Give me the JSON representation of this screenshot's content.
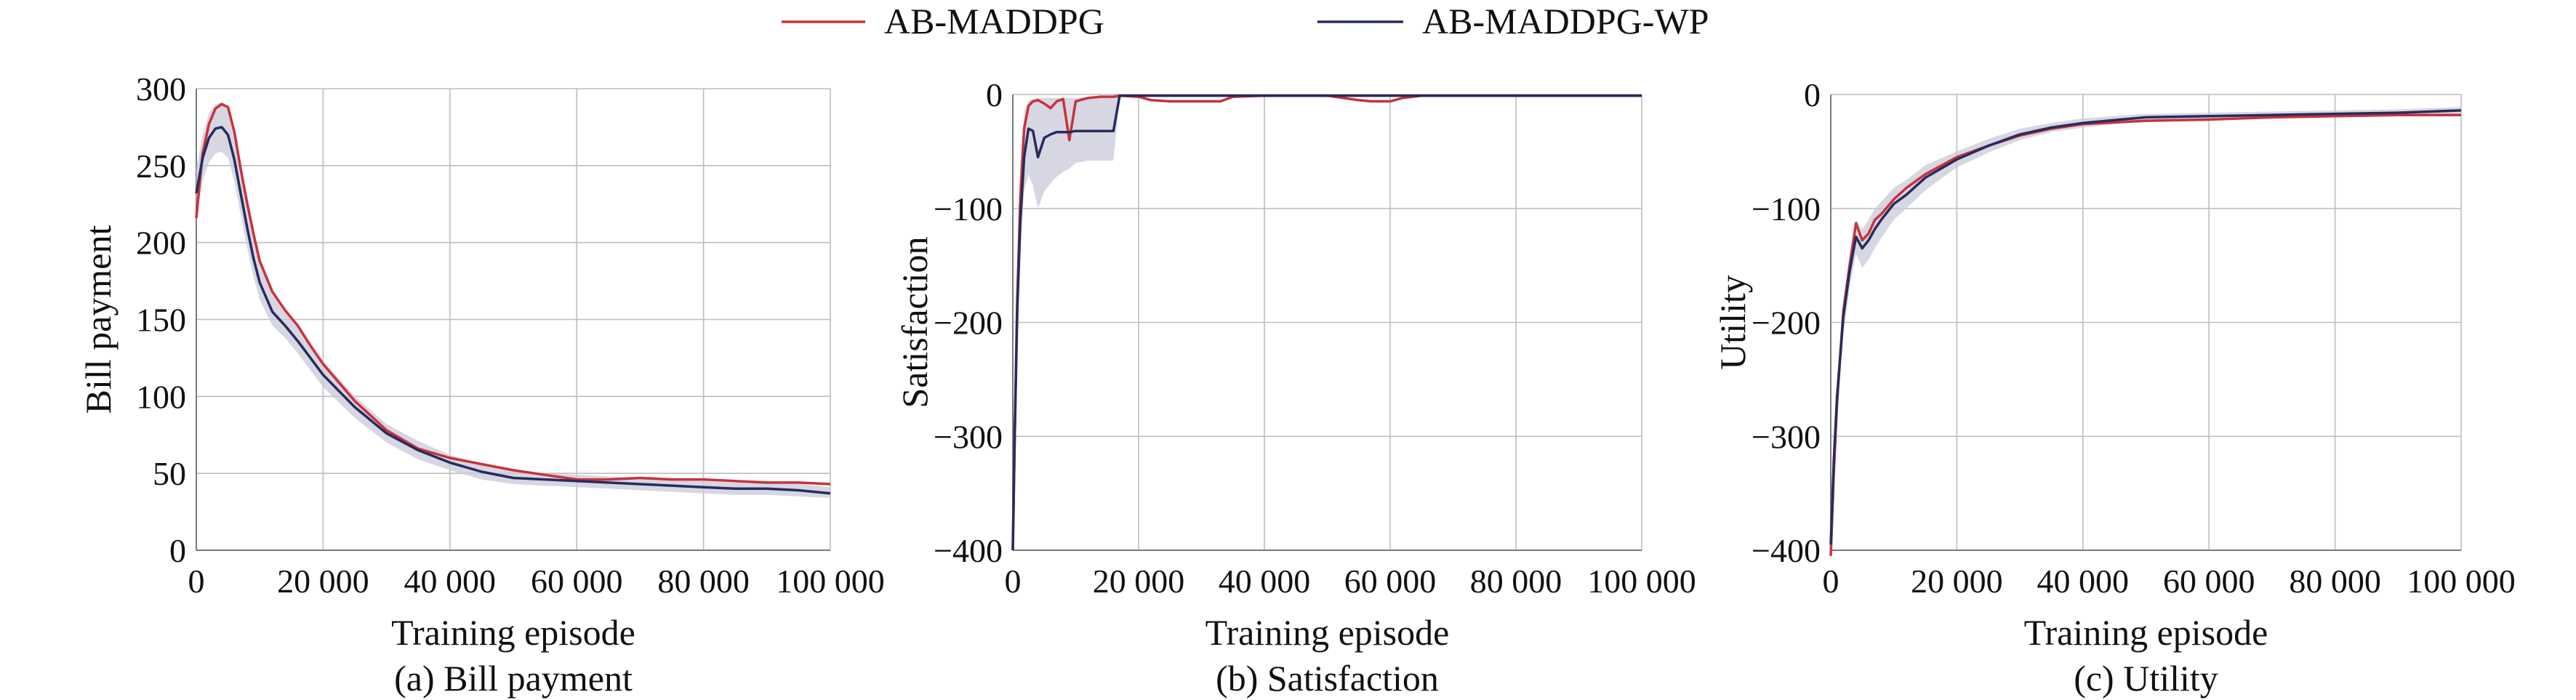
{
  "legend": {
    "entries": [
      {
        "name": "AB-MADDPG",
        "color": "#c8323c"
      },
      {
        "name": "AB-MADDPG-WP",
        "color": "#262c5c"
      }
    ],
    "placement": "top-center"
  },
  "colors": {
    "band": "#c9cad9",
    "grid": "#bdbdbd",
    "axis": "#7a7a7a"
  },
  "chart_data": [
    {
      "type": "line",
      "caption": "(a) Bill payment",
      "xlabel": "Training episode",
      "ylabel": "Bill payment",
      "xlim": [
        0,
        100000
      ],
      "ylim": [
        0,
        300
      ],
      "xticks": [
        0,
        20000,
        40000,
        60000,
        80000,
        100000
      ],
      "xtick_labels": [
        "0",
        "20 000",
        "40 000",
        "60 000",
        "80 000",
        "100 000"
      ],
      "yticks": [
        0,
        50,
        100,
        150,
        200,
        250,
        300
      ],
      "ytick_labels": [
        "0",
        "50",
        "100",
        "150",
        "200",
        "250",
        "300"
      ],
      "grid": true,
      "x": [
        0,
        1000,
        2000,
        3000,
        4000,
        5000,
        6000,
        7000,
        8000,
        9000,
        10000,
        12000,
        14000,
        16000,
        18000,
        20000,
        25000,
        30000,
        35000,
        40000,
        45000,
        50000,
        55000,
        60000,
        65000,
        70000,
        75000,
        80000,
        85000,
        90000,
        95000,
        100000
      ],
      "series": [
        {
          "name": "AB-MADDPG",
          "color": "#c8323c",
          "values": [
            216,
            258,
            277,
            287,
            290,
            288,
            272,
            248,
            226,
            206,
            188,
            168,
            156,
            146,
            133,
            121,
            97,
            78,
            66,
            60,
            56,
            52,
            49,
            46,
            46,
            47,
            46,
            46,
            45,
            44,
            44,
            43
          ]
        },
        {
          "name": "AB-MADDPG-WP",
          "color": "#262c5c",
          "values": [
            232,
            255,
            268,
            274,
            275,
            270,
            254,
            232,
            210,
            190,
            174,
            155,
            146,
            136,
            125,
            114,
            93,
            76,
            65,
            57,
            51,
            47,
            46,
            45,
            44,
            43,
            42,
            41,
            40,
            40,
            39,
            37
          ],
          "band_low": [
            216,
            240,
            252,
            258,
            259,
            255,
            240,
            218,
            197,
            178,
            163,
            146,
            138,
            128,
            117,
            106,
            86,
            70,
            59,
            52,
            46,
            43,
            42,
            41,
            40,
            39,
            38,
            37,
            36,
            36,
            35,
            34
          ],
          "band_high": [
            248,
            270,
            284,
            290,
            291,
            286,
            268,
            246,
            223,
            202,
            186,
            166,
            156,
            145,
            134,
            123,
            100,
            82,
            71,
            62,
            56,
            52,
            50,
            49,
            48,
            47,
            46,
            45,
            44,
            44,
            43,
            41
          ]
        }
      ]
    },
    {
      "type": "line",
      "caption": "(b) Satisfaction",
      "xlabel": "Training episode",
      "ylabel": "Satisfaction",
      "xlim": [
        0,
        100000
      ],
      "ylim": [
        -400,
        0
      ],
      "xticks": [
        0,
        20000,
        40000,
        60000,
        80000,
        100000
      ],
      "xtick_labels": [
        "0",
        "20 000",
        "40 000",
        "60 000",
        "80 000",
        "100 000"
      ],
      "yticks": [
        -400,
        -300,
        -200,
        -100,
        0
      ],
      "ytick_labels": [
        "−400",
        "−300",
        "−200",
        "−100",
        "0"
      ],
      "grid": true,
      "x": [
        0,
        300,
        700,
        1200,
        1800,
        2500,
        3200,
        4000,
        5000,
        6000,
        7000,
        8000,
        9000,
        10000,
        12000,
        14000,
        16000,
        17000,
        20000,
        22000,
        25000,
        30000,
        33000,
        35000,
        40000,
        50000,
        55000,
        57000,
        60000,
        62000,
        65000,
        70000,
        80000,
        90000,
        100000
      ],
      "series": [
        {
          "name": "AB-MADDPG",
          "color": "#c8323c",
          "values": [
            -400,
            -300,
            -180,
            -90,
            -30,
            -10,
            -6,
            -5,
            -8,
            -12,
            -6,
            -4,
            -40,
            -6,
            -3,
            -2,
            -2,
            -1,
            -2,
            -5,
            -6,
            -6,
            -6,
            -2,
            -1,
            -1,
            -5,
            -6,
            -6,
            -3,
            -1,
            -1,
            -1,
            -1,
            -1
          ]
        },
        {
          "name": "AB-MADDPG-WP",
          "color": "#262c5c",
          "values": [
            -400,
            -300,
            -190,
            -110,
            -55,
            -30,
            -32,
            -55,
            -38,
            -35,
            -33,
            -33,
            -33,
            -32,
            -32,
            -32,
            -32,
            -1,
            -1,
            -1,
            -1,
            -1,
            -1,
            -1,
            -1,
            -1,
            -1,
            -1,
            -1,
            -1,
            -1,
            -1,
            -1,
            -1,
            -1
          ],
          "band_low": [
            -400,
            -330,
            -220,
            -140,
            -85,
            -70,
            -80,
            -100,
            -85,
            -78,
            -72,
            -68,
            -65,
            -60,
            -58,
            -58,
            -58,
            -2,
            -2,
            -2,
            -2,
            -2,
            -2,
            -2,
            -2,
            -2,
            -2,
            -2,
            -2,
            -2,
            -2,
            -2,
            -2,
            -2,
            -2
          ],
          "band_high": [
            -380,
            -270,
            -150,
            -60,
            -15,
            -5,
            -4,
            -3,
            -3,
            -3,
            -3,
            -3,
            -3,
            -3,
            -2,
            -2,
            -2,
            0,
            0,
            0,
            0,
            0,
            0,
            0,
            0,
            0,
            0,
            0,
            0,
            0,
            0,
            0,
            0,
            0,
            0
          ]
        }
      ]
    },
    {
      "type": "line",
      "caption": "(c) Utility",
      "xlabel": "Training episode",
      "ylabel": "Utility",
      "xlim": [
        0,
        100000
      ],
      "ylim": [
        -400,
        0
      ],
      "xticks": [
        0,
        20000,
        40000,
        60000,
        80000,
        100000
      ],
      "xtick_labels": [
        "0",
        "20 000",
        "40 000",
        "60 000",
        "80 000",
        "100 000"
      ],
      "yticks": [
        -400,
        -300,
        -200,
        -100,
        0
      ],
      "ytick_labels": [
        "−400",
        "−300",
        "−200",
        "−100",
        "0"
      ],
      "grid": true,
      "x": [
        0,
        500,
        1000,
        2000,
        3000,
        4000,
        5000,
        6000,
        7000,
        8000,
        10000,
        12000,
        15000,
        20000,
        25000,
        30000,
        35000,
        40000,
        50000,
        60000,
        70000,
        80000,
        90000,
        100000
      ],
      "series": [
        {
          "name": "AB-MADDPG",
          "color": "#c8323c",
          "values": [
            -405,
            -330,
            -270,
            -190,
            -150,
            -113,
            -128,
            -122,
            -110,
            -105,
            -92,
            -82,
            -70,
            -55,
            -45,
            -36,
            -30,
            -26,
            -23,
            -22,
            -20,
            -19,
            -18,
            -18
          ]
        },
        {
          "name": "AB-MADDPG-WP",
          "color": "#262c5c",
          "values": [
            -395,
            -320,
            -265,
            -195,
            -155,
            -125,
            -135,
            -128,
            -118,
            -110,
            -96,
            -88,
            -73,
            -57,
            -45,
            -35,
            -29,
            -25,
            -20,
            -19,
            -18,
            -17,
            -16,
            -14
          ],
          "band_low": [
            -405,
            -335,
            -280,
            -210,
            -170,
            -140,
            -152,
            -145,
            -135,
            -126,
            -110,
            -100,
            -84,
            -64,
            -51,
            -40,
            -33,
            -29,
            -23,
            -22,
            -21,
            -20,
            -19,
            -17
          ],
          "band_high": [
            -385,
            -305,
            -250,
            -180,
            -140,
            -110,
            -118,
            -110,
            -100,
            -94,
            -82,
            -75,
            -62,
            -50,
            -39,
            -30,
            -25,
            -21,
            -17,
            -16,
            -15,
            -14,
            -13,
            -11
          ]
        }
      ]
    }
  ]
}
